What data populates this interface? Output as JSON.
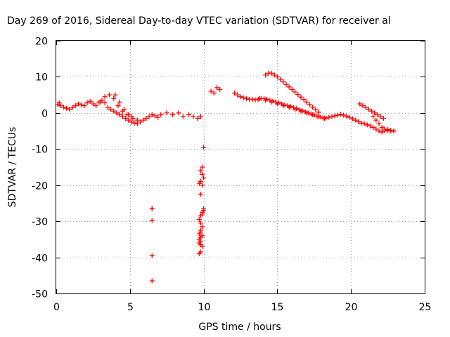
{
  "chart_data": {
    "type": "scatter",
    "title": "Day 269 of 2016, Sidereal Day-to-day VTEC variation (SDTVAR) for receiver al",
    "xlabel": "GPS time / hours",
    "ylabel": "SDTVAR / TECUs",
    "xlim": [
      0,
      25
    ],
    "ylim": [
      -50,
      20
    ],
    "xticks": [
      "0",
      "5",
      "10",
      "15",
      "20",
      "25"
    ],
    "yticks": [
      "-50",
      "-40",
      "-30",
      "-20",
      "-10",
      "0",
      "10",
      "20"
    ],
    "grid": true,
    "marker": "+",
    "color": "#ff0000",
    "series": [
      {
        "name": "SDTVAR",
        "x": [
          0.1,
          0.2,
          0.3,
          0.5,
          0.7,
          0.9,
          1.1,
          1.3,
          1.5,
          1.7,
          1.9,
          2.1,
          2.3,
          2.5,
          2.7,
          2.9,
          3.1,
          3.3,
          3.5,
          3.7,
          3.9,
          4.1,
          4.3,
          4.5,
          4.7,
          4.9,
          5.1,
          5.3,
          5.5,
          5.7,
          5.9,
          6.1,
          6.3,
          6.5,
          6.7,
          6.9,
          7.1,
          7.5,
          7.9,
          8.3,
          8.6,
          9.0,
          9.3,
          9.6,
          9.8,
          10.5,
          10.7,
          10.9,
          11.1,
          12.1,
          12.3,
          12.5,
          12.7,
          12.9,
          13.1,
          13.3,
          13.5,
          13.7,
          13.9,
          14.1,
          14.3,
          14.5,
          14.7,
          14.9,
          15.1,
          15.3,
          15.5,
          15.7,
          15.9,
          16.1,
          16.3,
          16.5,
          16.7,
          16.9,
          17.1,
          17.3,
          17.5,
          17.7,
          17.9,
          18.1,
          18.3,
          18.5,
          18.7,
          18.9,
          19.1,
          19.3,
          19.5,
          19.7,
          19.9,
          20.1,
          20.3,
          20.5,
          20.7,
          20.9,
          21.1,
          21.3,
          21.5,
          21.7,
          21.9,
          22.1,
          22.3,
          22.5,
          22.7,
          22.9,
          3.0,
          3.3,
          3.6,
          3.9,
          4.2,
          4.5,
          4.8,
          5.1,
          4.0,
          4.3,
          4.6,
          4.9,
          5.2,
          5.5,
          14.2,
          14.4,
          14.6,
          14.8,
          15.0,
          15.2,
          15.4,
          15.6,
          15.8,
          16.0,
          16.2,
          16.4,
          16.6,
          16.8,
          17.0,
          17.2,
          17.4,
          17.6,
          17.8,
          13.8,
          14.2,
          14.6,
          15.0,
          15.4,
          15.8,
          16.2,
          16.6,
          17.0,
          17.4,
          17.8,
          18.2,
          21.5,
          21.7,
          21.9,
          22.1,
          22.3,
          22.5,
          22.7,
          22.9,
          20.6,
          20.8,
          21.0,
          21.2,
          21.4,
          21.6,
          21.8,
          22.0,
          22.2,
          6.5,
          6.5,
          6.5,
          6.5,
          6.5,
          10.0,
          9.9,
          9.8,
          9.9,
          10.0,
          9.8,
          9.7,
          9.9,
          9.8,
          10.0,
          9.9,
          9.8,
          9.7,
          9.8,
          9.9,
          9.8,
          9.7,
          9.9,
          9.8,
          10.0,
          9.9,
          9.8,
          9.7,
          9.8,
          9.7,
          9.8,
          9.9,
          9.8,
          9.7
        ],
        "y": [
          2.3,
          2.8,
          2.0,
          1.6,
          1.3,
          1.0,
          1.5,
          2.0,
          2.5,
          2.2,
          2.0,
          2.8,
          3.2,
          2.5,
          2.0,
          3.0,
          3.5,
          2.8,
          1.5,
          1.0,
          0.5,
          0.0,
          -0.5,
          -1.0,
          -1.5,
          -2.0,
          -2.5,
          -2.8,
          -3.0,
          -2.5,
          -2.0,
          -1.5,
          -1.0,
          -0.5,
          -0.8,
          -1.2,
          -0.5,
          0.0,
          -0.5,
          0.0,
          -1.0,
          -0.5,
          -1.0,
          -1.5,
          -1.0,
          6.0,
          5.5,
          7.0,
          6.5,
          5.5,
          5.0,
          4.5,
          4.2,
          4.0,
          3.8,
          3.8,
          3.6,
          3.8,
          4.0,
          4.0,
          3.8,
          3.5,
          3.3,
          3.0,
          2.8,
          2.5,
          2.2,
          2.0,
          1.8,
          1.5,
          1.2,
          0.9,
          0.6,
          0.3,
          0.0,
          -0.3,
          -0.6,
          -0.9,
          -1.1,
          -1.4,
          -1.4,
          -1.2,
          -1.0,
          -0.8,
          -0.6,
          -0.4,
          -0.6,
          -0.9,
          -1.2,
          -1.6,
          -2.0,
          -2.4,
          -2.8,
          -3.0,
          -3.3,
          -3.6,
          -4.0,
          -4.5,
          -5.0,
          -5.3,
          -5.0,
          -4.6,
          -4.8,
          -5.0,
          3.0,
          4.5,
          5.0,
          4.0,
          2.0,
          0.5,
          -0.5,
          -1.0,
          5.0,
          3.0,
          1.0,
          -0.5,
          -1.5,
          -2.0,
          10.5,
          11.0,
          11.0,
          10.5,
          10.0,
          9.3,
          8.6,
          7.9,
          7.2,
          6.5,
          5.8,
          5.1,
          4.4,
          3.7,
          3.0,
          2.3,
          1.6,
          0.9,
          0.2,
          4.0,
          3.5,
          3.0,
          2.5,
          2.0,
          1.5,
          1.0,
          0.5,
          0.0,
          -0.5,
          -1.0,
          -1.5,
          -1.0,
          -2.0,
          -3.0,
          -4.0,
          -4.5,
          -4.8,
          -5.0,
          -5.0,
          2.5,
          2.0,
          1.5,
          1.0,
          0.5,
          0.0,
          -0.5,
          -1.0,
          -1.5,
          -26.5,
          -26.5,
          -29.8,
          -39.5,
          -46.5,
          -9.5,
          -15.0,
          -16.0,
          -17.0,
          -18.0,
          -19.0,
          -19.5,
          -20.0,
          -22.5,
          -26.5,
          -27.5,
          -28.5,
          -29.5,
          -30.5,
          -31.5,
          -32.5,
          -33.5,
          -34.0,
          -34.5,
          -27.0,
          -28.0,
          -33.0,
          -35.0,
          -35.5,
          -36.0,
          -36.5,
          -37.0,
          -38.5,
          -39.0
        ]
      }
    ]
  }
}
